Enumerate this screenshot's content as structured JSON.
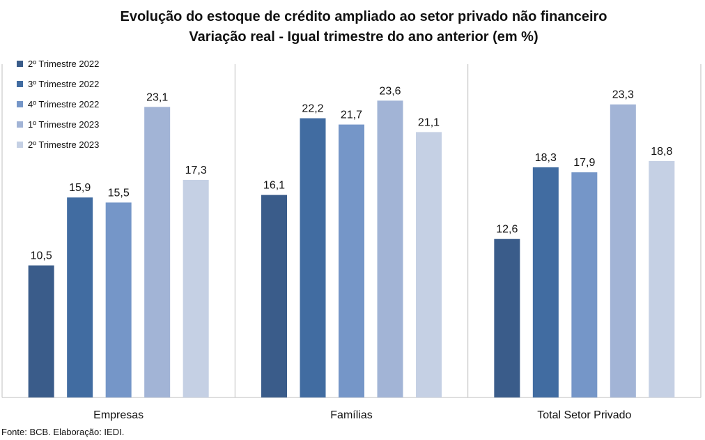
{
  "chart_data": {
    "type": "bar",
    "title": "Evolução do estoque de crédito ampliado ao setor privado não financeiro",
    "subtitle": "Variação real - Igual trimestre do ano anterior (em %)",
    "categories": [
      "Empresas",
      "Famílias",
      "Total Setor Privado"
    ],
    "series": [
      {
        "name": "2º Trimestre 2022",
        "values": [
          10.5,
          16.1,
          12.6
        ],
        "labels": [
          "10,5",
          "16,1",
          "12,6"
        ],
        "color": "#3a5c8a"
      },
      {
        "name": "3º Trimestre 2022",
        "values": [
          15.9,
          22.2,
          18.3
        ],
        "labels": [
          "15,9",
          "22,2",
          "18,3"
        ],
        "color": "#416ca1"
      },
      {
        "name": "4º Trimestre 2022",
        "values": [
          15.5,
          21.7,
          17.9
        ],
        "labels": [
          "15,5",
          "21,7",
          "17,9"
        ],
        "color": "#7596c8"
      },
      {
        "name": "1º Trimestre 2023",
        "values": [
          23.1,
          23.6,
          23.3
        ],
        "labels": [
          "23,1",
          "23,6",
          "23,3"
        ],
        "color": "#a2b4d6"
      },
      {
        "name": "2º Trimestre 2023",
        "values": [
          17.3,
          21.1,
          18.8
        ],
        "labels": [
          "17,3",
          "21,1",
          "18,8"
        ],
        "color": "#c5d0e4"
      }
    ],
    "ylim": [
      0,
      26.5
    ],
    "grid": false,
    "legend": "top-left",
    "source": "Fonte: BCB. Elaboração: IEDI."
  }
}
